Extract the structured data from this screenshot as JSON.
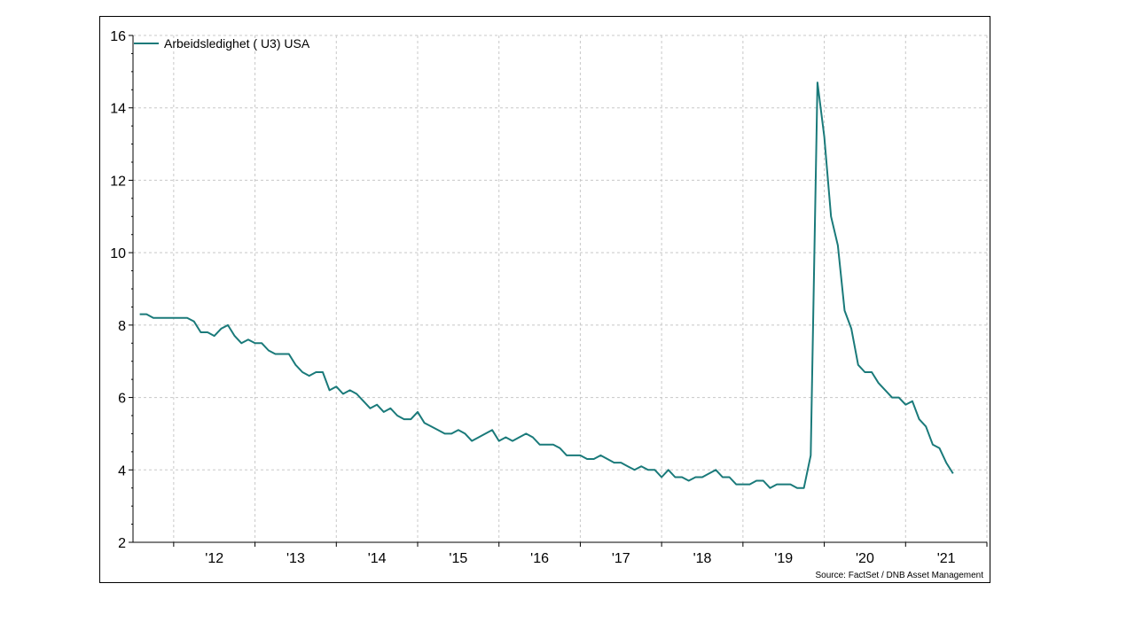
{
  "chart_data": {
    "type": "line",
    "title": "",
    "xlabel": "",
    "ylabel": "",
    "ylim": [
      2,
      16
    ],
    "yticks": [
      "2",
      "4",
      "6",
      "8",
      "10",
      "12",
      "14",
      "16"
    ],
    "xticks": [
      {
        "label": "'12",
        "x": 2012.0
      },
      {
        "label": "'13",
        "x": 2013.0
      },
      {
        "label": "'14",
        "x": 2014.0
      },
      {
        "label": "'15",
        "x": 2015.0
      },
      {
        "label": "'16",
        "x": 2016.0
      },
      {
        "label": "'17",
        "x": 2017.0
      },
      {
        "label": "'18",
        "x": 2018.0
      },
      {
        "label": "'19",
        "x": 2019.0
      },
      {
        "label": "'20",
        "x": 2020.0
      },
      {
        "label": "'21",
        "x": 2021.0
      }
    ],
    "xlim": [
      "2011-07",
      "2022-01"
    ],
    "grid": true,
    "legend_position": "top-left",
    "source": "Source: FactSet / DNB Asset Management",
    "series": [
      {
        "name": "Arbeidsledighet ( U3)  USA",
        "color": "#1a7a7a",
        "start": "2011-08",
        "values": [
          8.3,
          8.3,
          8.2,
          8.2,
          8.2,
          8.2,
          8.2,
          8.2,
          8.1,
          7.8,
          7.8,
          7.7,
          7.9,
          8.0,
          7.7,
          7.5,
          7.6,
          7.5,
          7.5,
          7.3,
          7.2,
          7.2,
          7.2,
          6.9,
          6.7,
          6.6,
          6.7,
          6.7,
          6.2,
          6.3,
          6.1,
          6.2,
          6.1,
          5.9,
          5.7,
          5.8,
          5.6,
          5.7,
          5.5,
          5.4,
          5.4,
          5.6,
          5.3,
          5.2,
          5.1,
          5.0,
          5.0,
          5.1,
          5.0,
          4.8,
          4.9,
          5.0,
          5.1,
          4.8,
          4.9,
          4.8,
          4.9,
          5.0,
          4.9,
          4.7,
          4.7,
          4.7,
          4.6,
          4.4,
          4.4,
          4.4,
          4.3,
          4.3,
          4.4,
          4.3,
          4.2,
          4.2,
          4.1,
          4.0,
          4.1,
          4.0,
          4.0,
          3.8,
          4.0,
          3.8,
          3.8,
          3.7,
          3.8,
          3.8,
          3.9,
          4.0,
          3.8,
          3.8,
          3.6,
          3.6,
          3.6,
          3.7,
          3.7,
          3.5,
          3.6,
          3.6,
          3.6,
          3.5,
          3.5,
          4.4,
          14.7,
          13.2,
          11.0,
          10.2,
          8.4,
          7.9,
          6.9,
          6.7,
          6.7,
          6.4,
          6.2,
          6.0,
          6.0,
          5.8,
          5.9,
          5.4,
          5.2,
          4.7,
          4.6,
          4.2,
          3.9
        ]
      }
    ]
  }
}
